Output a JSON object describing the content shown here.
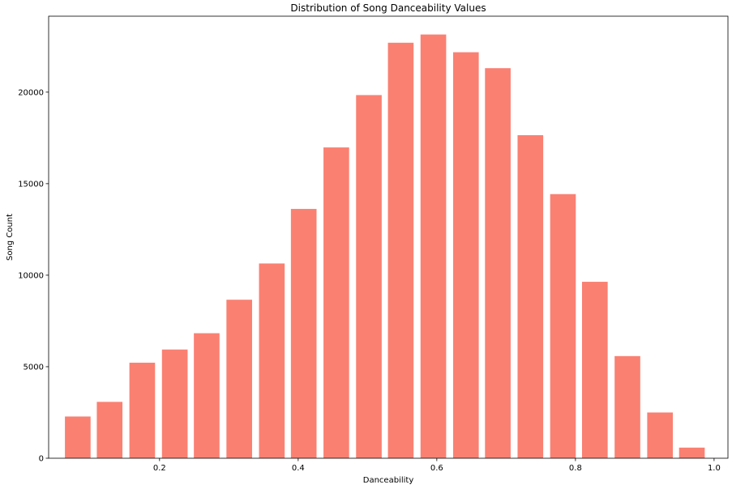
{
  "chart_data": {
    "type": "bar",
    "title": "Distribution of Song Danceability Values",
    "xlabel": "Danceability",
    "ylabel": "Song Count",
    "xlim": [
      0.04,
      1.02
    ],
    "ylim": [
      0,
      24150
    ],
    "xticks": [
      0.2,
      0.4,
      0.6,
      0.8,
      1.0
    ],
    "xtick_labels": [
      "0.2",
      "0.4",
      "0.6",
      "0.8",
      "1.0"
    ],
    "yticks": [
      0,
      5000,
      10000,
      15000,
      20000
    ],
    "ytick_labels": [
      "0",
      "5000",
      "10000",
      "15000",
      "20000"
    ],
    "bar_color": "#fa8072",
    "bar_width": 0.037,
    "grid": false,
    "x": [
      0.082,
      0.128,
      0.175,
      0.222,
      0.268,
      0.315,
      0.362,
      0.408,
      0.455,
      0.502,
      0.548,
      0.595,
      0.642,
      0.688,
      0.735,
      0.782,
      0.828,
      0.875,
      0.922,
      0.968
    ],
    "values": [
      2280,
      3080,
      5220,
      5940,
      6830,
      8660,
      10640,
      13620,
      16980,
      19840,
      22700,
      23150,
      22180,
      21310,
      17650,
      14430,
      9640,
      5580,
      2500,
      580
    ]
  }
}
